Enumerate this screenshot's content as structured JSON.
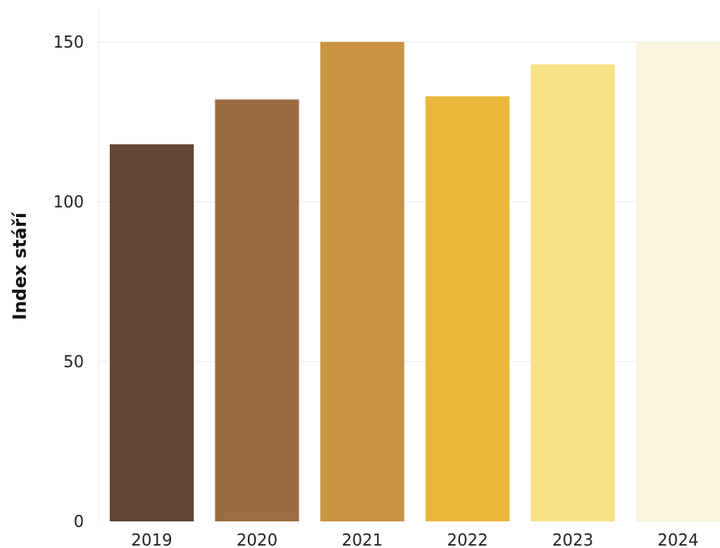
{
  "chart_data": {
    "type": "bar",
    "title": "",
    "xlabel": "",
    "ylabel": "Index stáří",
    "categories": [
      "2019",
      "2020",
      "2021",
      "2022",
      "2023",
      "2024"
    ],
    "values": [
      118,
      132,
      150,
      133,
      143,
      150
    ],
    "bar_colors": [
      "#634734",
      "#9a6c41",
      "#c99443",
      "#ebb73a",
      "#f8e087",
      "#faf3de"
    ],
    "ylim": [
      0,
      160
    ],
    "yticks": [
      0,
      50,
      100,
      150
    ],
    "ytick_labels": [
      "0",
      "50",
      "100",
      "150"
    ],
    "grid": true,
    "legend": "none"
  }
}
